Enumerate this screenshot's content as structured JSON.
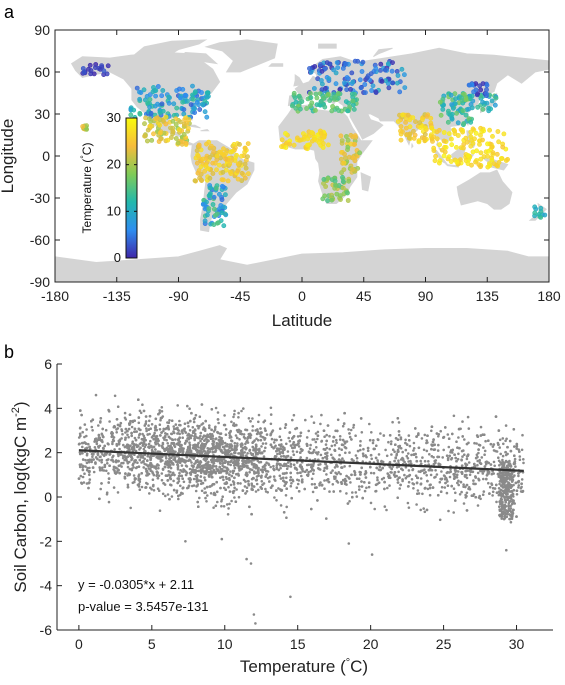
{
  "chart_data": [
    {
      "panel": "a",
      "type": "scatter",
      "xlabel": "Latitude",
      "ylabel": "Longitude",
      "xlim": [
        -180,
        180
      ],
      "ylim": [
        -90,
        90
      ],
      "xticks": [
        -180,
        -135,
        -90,
        -45,
        0,
        45,
        90,
        135,
        180
      ],
      "yticks": [
        -90,
        -60,
        -30,
        0,
        30,
        60,
        90
      ],
      "colorbar": {
        "label": "Temperature (°C)",
        "label_prefix": "Temperature (",
        "label_deg": "°",
        "label_suffix": "C)",
        "ticks": [
          0,
          10,
          20,
          30
        ],
        "range": [
          0,
          30
        ],
        "colors": [
          "#3e26a8",
          "#2e8ef0",
          "#22b8ac",
          "#80cb57",
          "#f6bc3b",
          "#f9fb0e"
        ]
      },
      "land_color": "#d4d4d4",
      "site_clusters": [
        {
          "region": "North America",
          "lon": [
            -125,
            -68
          ],
          "lat": [
            27,
            50
          ],
          "temp": [
            3,
            14
          ]
        },
        {
          "region": "Alaska",
          "lon": [
            -160,
            -140
          ],
          "lat": [
            58,
            66
          ],
          "temp": [
            0,
            3
          ]
        },
        {
          "region": "Mexico / Central America",
          "lon": [
            -115,
            -82
          ],
          "lat": [
            8,
            28
          ],
          "temp": [
            18,
            27
          ]
        },
        {
          "region": "Northern South America",
          "lon": [
            -78,
            -38
          ],
          "lat": [
            -18,
            10
          ],
          "temp": [
            22,
            28
          ]
        },
        {
          "region": "Southern South America",
          "lon": [
            -72,
            -55
          ],
          "lat": [
            -50,
            -20
          ],
          "temp": [
            4,
            16
          ]
        },
        {
          "region": "Europe / Russia",
          "lon": [
            5,
            75
          ],
          "lat": [
            45,
            68
          ],
          "temp": [
            0,
            10
          ]
        },
        {
          "region": "Mediterranean",
          "lon": [
            -8,
            40
          ],
          "lat": [
            32,
            45
          ],
          "temp": [
            12,
            18
          ]
        },
        {
          "region": "Sahel / West Africa",
          "lon": [
            -15,
            20
          ],
          "lat": [
            5,
            18
          ],
          "temp": [
            25,
            29
          ]
        },
        {
          "region": "East Africa",
          "lon": [
            28,
            42
          ],
          "lat": [
            -12,
            15
          ],
          "temp": [
            18,
            26
          ]
        },
        {
          "region": "Southern Africa",
          "lon": [
            15,
            35
          ],
          "lat": [
            -32,
            -15
          ],
          "temp": [
            14,
            22
          ]
        },
        {
          "region": "South Asia",
          "lon": [
            70,
            95
          ],
          "lat": [
            10,
            30
          ],
          "temp": [
            22,
            28
          ]
        },
        {
          "region": "East Asia",
          "lon": [
            100,
            125
          ],
          "lat": [
            22,
            45
          ],
          "temp": [
            8,
            18
          ]
        },
        {
          "region": "Japan",
          "lon": [
            128,
            142
          ],
          "lat": [
            32,
            44
          ],
          "temp": [
            8,
            16
          ]
        },
        {
          "region": "Northeast Asia",
          "lon": [
            120,
            135
          ],
          "lat": [
            42,
            52
          ],
          "temp": [
            0,
            6
          ]
        },
        {
          "region": "Southeast Asia",
          "lon": [
            95,
            150
          ],
          "lat": [
            -8,
            20
          ],
          "temp": [
            25,
            29
          ]
        },
        {
          "region": "New Zealand",
          "lon": [
            168,
            178
          ],
          "lat": [
            -45,
            -36
          ],
          "temp": [
            9,
            14
          ]
        },
        {
          "region": "Hawaii",
          "lon": [
            -160,
            -155
          ],
          "lat": [
            19,
            22
          ],
          "temp": [
            18,
            24
          ]
        }
      ]
    },
    {
      "panel": "b",
      "type": "scatter",
      "xlabel_prefix": "Temperature (",
      "xlabel_deg": "°",
      "xlabel_suffix": "C)",
      "ylabel_prefix": "Soil Carbon, log(kgC m",
      "ylabel_sup": "-2",
      "ylabel_suffix": ")",
      "xlim": [
        -1.5,
        32.5
      ],
      "ylim": [
        -6,
        6
      ],
      "xticks": [
        0,
        5,
        10,
        15,
        20,
        25,
        30
      ],
      "yticks": [
        -6,
        -4,
        -2,
        0,
        2,
        4,
        6
      ],
      "point_color": "#8a8a8a",
      "fit_line": {
        "slope": -0.0305,
        "intercept": 2.11,
        "x_range": [
          0,
          30.5
        ],
        "color": "#333333"
      },
      "point_cloud": {
        "x_range": [
          0,
          30.5
        ],
        "mean": "-0.0305*x + 2.11",
        "spread_sd": 0.85,
        "dense_cluster": {
          "x": [
            28.8,
            29.8
          ],
          "y": [
            -1.0,
            1.6
          ]
        }
      },
      "outliers": [
        {
          "x": 12.0,
          "y": -5.3
        },
        {
          "x": 12.1,
          "y": -5.7
        },
        {
          "x": 11.8,
          "y": -3.0
        },
        {
          "x": 14.5,
          "y": -4.5
        },
        {
          "x": 11.5,
          "y": -2.8
        },
        {
          "x": 7.3,
          "y": -2.0
        },
        {
          "x": 20.1,
          "y": -2.6
        },
        {
          "x": 29.3,
          "y": -2.4
        },
        {
          "x": 9.8,
          "y": -1.9
        },
        {
          "x": 18.5,
          "y": -2.1
        }
      ],
      "annotation_eq": "y = -0.0305*x + 2.11",
      "annotation_p": "p-value = 3.5457e-131"
    }
  ],
  "panels": {
    "a": "a",
    "b": "b"
  }
}
